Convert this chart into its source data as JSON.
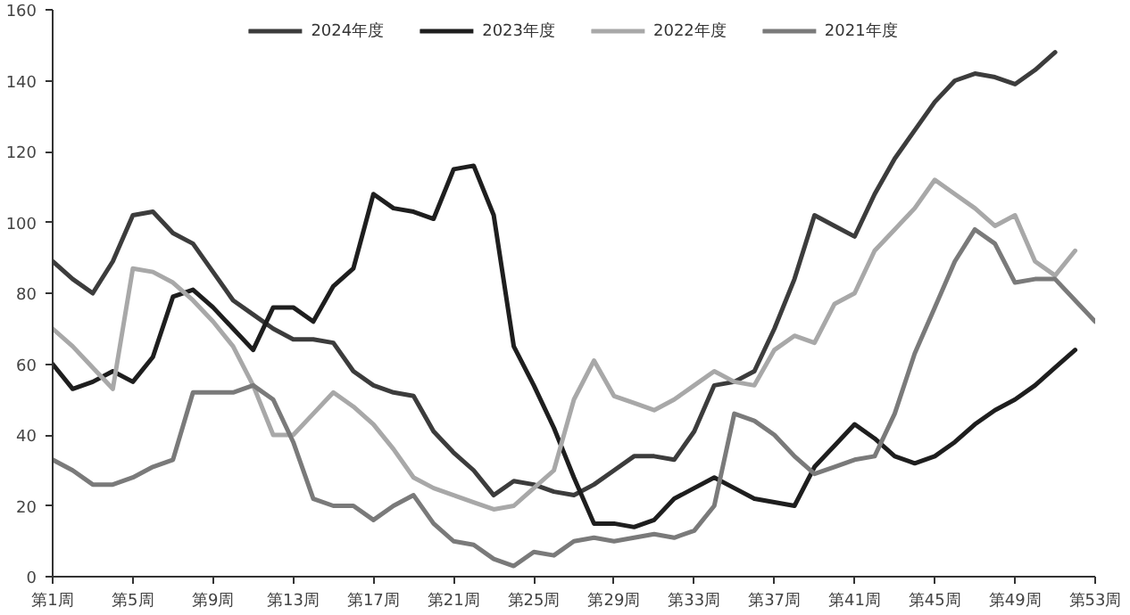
{
  "chart_data": {
    "type": "line",
    "ylim": [
      0,
      160
    ],
    "yticks": [
      0,
      20,
      40,
      60,
      80,
      100,
      120,
      140,
      160
    ],
    "categories": [
      "第1周",
      null,
      null,
      null,
      "第5周",
      null,
      null,
      null,
      "第9周",
      null,
      null,
      null,
      "第13周",
      null,
      null,
      null,
      "第17周",
      null,
      null,
      null,
      "第21周",
      null,
      null,
      null,
      "第25周",
      null,
      null,
      null,
      "第29周",
      null,
      null,
      null,
      "第33周",
      null,
      null,
      null,
      "第37周",
      null,
      null,
      null,
      "第41周",
      null,
      null,
      null,
      "第45周",
      null,
      null,
      null,
      "第49周",
      null,
      null,
      null,
      "第53周"
    ],
    "grid": false,
    "legend": "top",
    "line_style": "solid",
    "marker": "none",
    "series": [
      {
        "name": "2024年度",
        "color": "#3c3c3c",
        "values": [
          89,
          84,
          80,
          89,
          102,
          103,
          97,
          94,
          86,
          78,
          74,
          70,
          67,
          67,
          66,
          58,
          54,
          52,
          51,
          41,
          35,
          30,
          23,
          27,
          26,
          24,
          23,
          26,
          30,
          34,
          34,
          33,
          41,
          54,
          55,
          58,
          70,
          84,
          102,
          99,
          96,
          108,
          118,
          126,
          134,
          140,
          142,
          141,
          139,
          143,
          148,
          null,
          null
        ]
      },
      {
        "name": "2023年度",
        "color": "#1e1e1e",
        "values": [
          60,
          53,
          55,
          58,
          55,
          62,
          79,
          81,
          76,
          70,
          64,
          76,
          76,
          72,
          82,
          87,
          108,
          104,
          103,
          101,
          115,
          116,
          102,
          65,
          54,
          42,
          28,
          15,
          15,
          14,
          16,
          22,
          25,
          28,
          25,
          22,
          21,
          20,
          31,
          37,
          43,
          39,
          34,
          32,
          34,
          38,
          43,
          47,
          50,
          54,
          59,
          64,
          null
        ]
      },
      {
        "name": "2022年度",
        "color": "#a8a8a8",
        "values": [
          70,
          65,
          59,
          53,
          87,
          86,
          83,
          78,
          72,
          65,
          54,
          40,
          40,
          46,
          52,
          48,
          43,
          36,
          28,
          25,
          23,
          21,
          19,
          20,
          25,
          30,
          50,
          61,
          51,
          49,
          47,
          50,
          54,
          58,
          55,
          54,
          64,
          68,
          66,
          77,
          80,
          92,
          98,
          104,
          112,
          108,
          104,
          99,
          102,
          89,
          85,
          92,
          null
        ]
      },
      {
        "name": "2021年度",
        "color": "#7a7a7a",
        "values": [
          33,
          30,
          26,
          26,
          28,
          31,
          33,
          52,
          52,
          52,
          54,
          50,
          38,
          22,
          20,
          20,
          16,
          20,
          23,
          15,
          10,
          9,
          5,
          3,
          7,
          6,
          10,
          11,
          10,
          11,
          12,
          11,
          13,
          20,
          46,
          44,
          40,
          34,
          29,
          31,
          33,
          34,
          46,
          63,
          76,
          89,
          98,
          94,
          83,
          84,
          84,
          78,
          72
        ]
      }
    ]
  }
}
